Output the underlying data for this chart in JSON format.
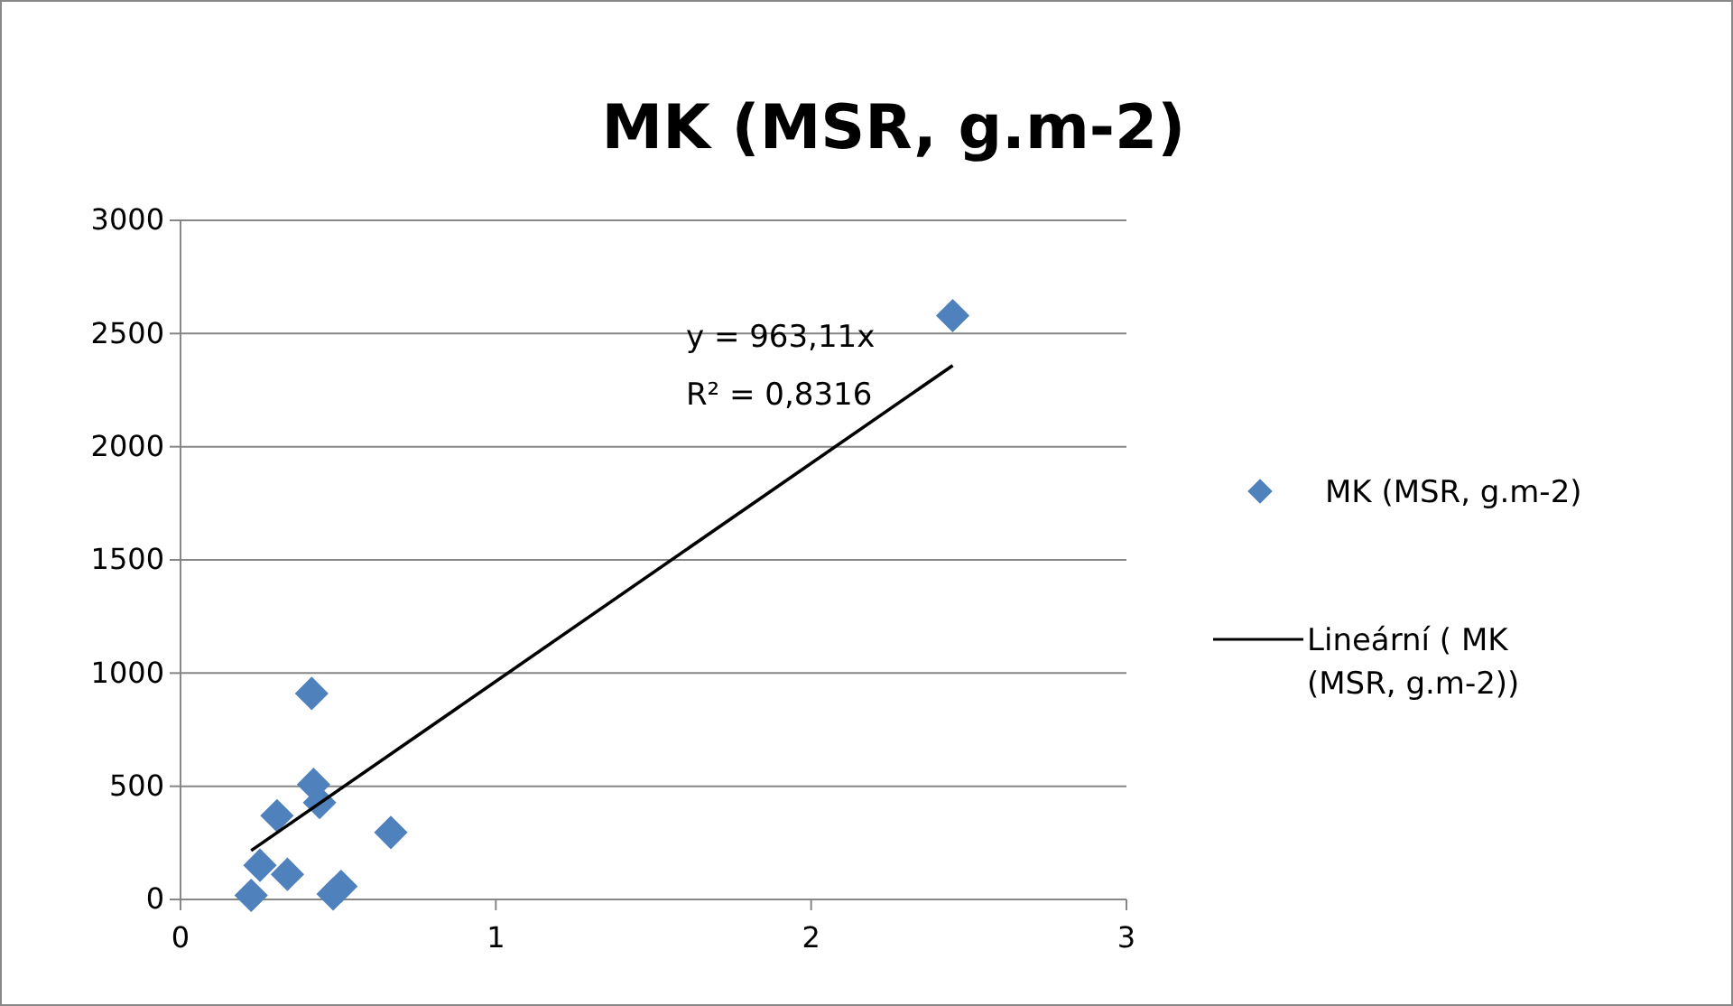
{
  "chart_data": {
    "type": "scatter",
    "title": "MK (MSR, g.m-2)",
    "grid": "y",
    "legend": "right",
    "xlim": [
      0,
      3
    ],
    "xticks": [
      0,
      1,
      2,
      3
    ],
    "ylim": [
      0,
      3000
    ],
    "yticks": [
      0,
      500,
      1000,
      1500,
      2000,
      2500,
      3000
    ],
    "series": [
      {
        "name": "MK (MSR, g.m-2)",
        "marker": "diamond",
        "color": "#4f81bd",
        "x": [
          0.416,
          0.422,
          0.441,
          0.306,
          0.667,
          0.252,
          0.339,
          0.224,
          0.484,
          0.509,
          2.449
        ],
        "values": [
          910,
          508,
          428,
          370,
          296,
          151,
          111,
          18,
          24,
          58,
          2579
        ]
      },
      {
        "name": "Lineární ( MK (MSR, g.m-2))",
        "type": "line",
        "color": "#000000",
        "x": [
          0.224,
          2.449
        ],
        "values": [
          216,
          2359
        ]
      }
    ],
    "annotations": [
      "y = 963,11x",
      "R² = 0,8316"
    ]
  }
}
